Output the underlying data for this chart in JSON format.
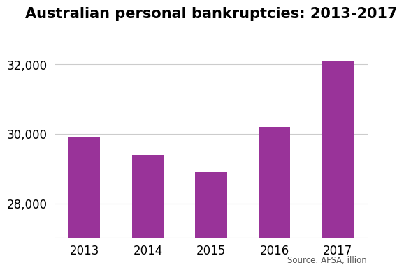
{
  "categories": [
    "2013",
    "2014",
    "2015",
    "2016",
    "2017"
  ],
  "values": [
    29900,
    29400,
    28900,
    30200,
    32100
  ],
  "bar_color": "#993399",
  "title": "Australian personal bankruptcies: 2013-2017",
  "title_fontsize": 15,
  "title_fontweight": "bold",
  "ylim": [
    27000,
    33000
  ],
  "yticks": [
    28000,
    30000,
    32000
  ],
  "source_text": "Source: AFSA, illion",
  "source_fontsize": 8.5,
  "background_color": "#ffffff",
  "grid_color": "#cccccc",
  "bar_width": 0.5
}
